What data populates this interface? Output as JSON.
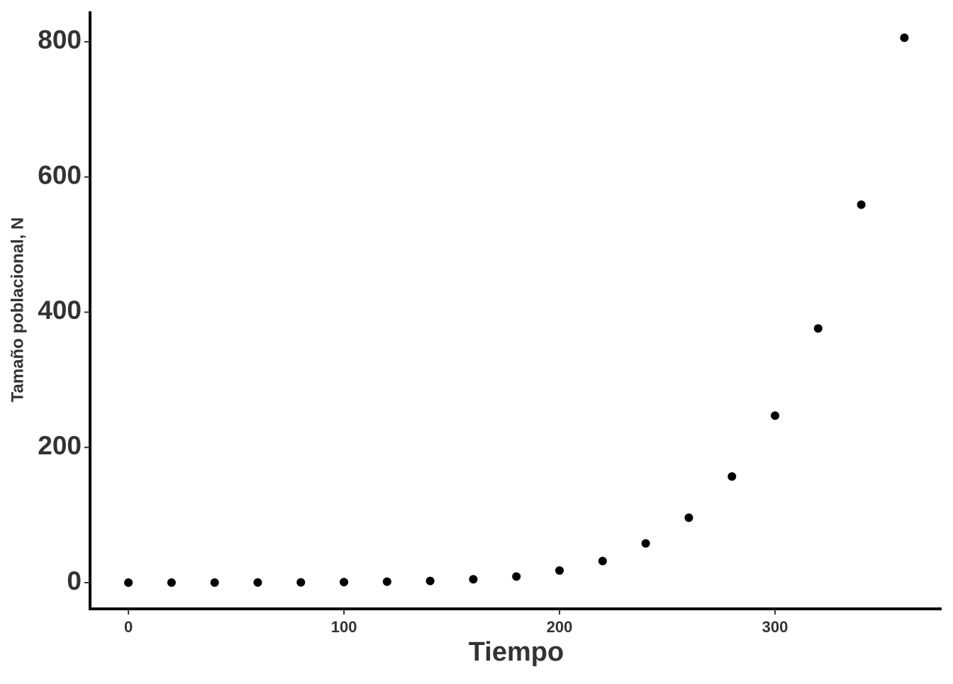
{
  "chart_data": {
    "type": "scatter",
    "x_label": "Tiempo",
    "y_label": "Tamaño poblacional, N",
    "x": [
      0,
      20,
      40,
      60,
      80,
      100,
      120,
      140,
      160,
      180,
      200,
      220,
      240,
      260,
      280,
      300,
      320,
      340,
      360
    ],
    "values": [
      0.03,
      0.06,
      0.1,
      0.2,
      0.4,
      0.8,
      1.4,
      2.5,
      5,
      9,
      18,
      32,
      58,
      96,
      157,
      247,
      376,
      559,
      806
    ],
    "color": "#000000",
    "xlim": [
      -17.8,
      377.3
    ],
    "ylim": [
      -38.8,
      845
    ],
    "xticks": [
      0,
      100,
      200,
      300
    ],
    "yticks": [
      0,
      200,
      400,
      600,
      800
    ]
  }
}
